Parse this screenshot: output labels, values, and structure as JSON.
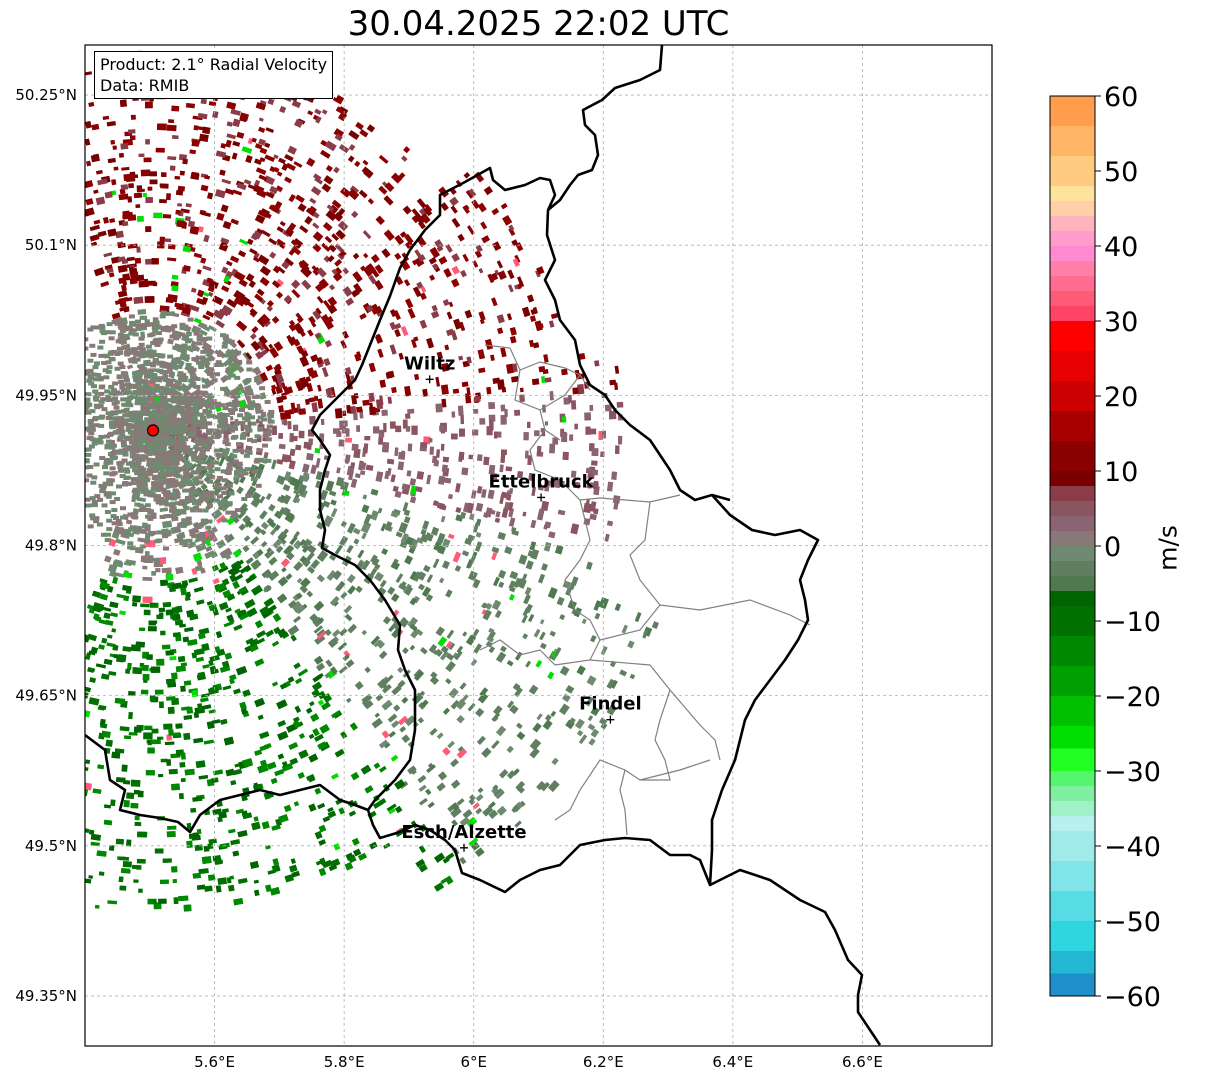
{
  "title": "30.04.2025 22:02 UTC",
  "info": {
    "product": "Product: 2.1° Radial Velocity",
    "data": "Data: RMIB"
  },
  "map": {
    "extent": {
      "lon_min": 5.4,
      "lon_max": 6.8,
      "lat_min": 49.3,
      "lat_max": 50.3
    },
    "lon_ticks": [
      {
        "value": 5.6,
        "label": "5.6°E"
      },
      {
        "value": 5.8,
        "label": "5.8°E"
      },
      {
        "value": 6.0,
        "label": "6°E"
      },
      {
        "value": 6.2,
        "label": "6.2°E"
      },
      {
        "value": 6.4,
        "label": "6.4°E"
      },
      {
        "value": 6.6,
        "label": "6.6°E"
      }
    ],
    "lat_ticks": [
      {
        "value": 49.35,
        "label": "49.35°N"
      },
      {
        "value": 49.5,
        "label": "49.5°N"
      },
      {
        "value": 49.65,
        "label": "49.65°N"
      },
      {
        "value": 49.8,
        "label": "49.8°N"
      },
      {
        "value": 49.95,
        "label": "49.95°N"
      },
      {
        "value": 50.1,
        "label": "50.1°N"
      },
      {
        "value": 50.25,
        "label": "50.25°N"
      }
    ],
    "radar_site": {
      "lon": 5.505,
      "lat": 49.915
    },
    "cities": [
      {
        "name": "Wiltz",
        "lon": 5.932,
        "lat": 49.966
      },
      {
        "name": "Ettelbruck",
        "lon": 6.104,
        "lat": 49.848
      },
      {
        "name": "Findel",
        "lon": 6.211,
        "lat": 49.626
      },
      {
        "name": "Esch/Alzette",
        "lon": 5.985,
        "lat": 49.498
      }
    ]
  },
  "colorbar": {
    "label": "m/s",
    "min": -60,
    "max": 60,
    "ticks": [
      {
        "value": 60,
        "label": "60"
      },
      {
        "value": 50,
        "label": "50"
      },
      {
        "value": 40,
        "label": "40"
      },
      {
        "value": 30,
        "label": "30"
      },
      {
        "value": 20,
        "label": "20"
      },
      {
        "value": 10,
        "label": "10"
      },
      {
        "value": 0,
        "label": "0"
      },
      {
        "value": -10,
        "label": "−10"
      },
      {
        "value": -20,
        "label": "−20"
      },
      {
        "value": -30,
        "label": "−30"
      },
      {
        "value": -40,
        "label": "−40"
      },
      {
        "value": -50,
        "label": "−50"
      },
      {
        "value": -60,
        "label": "−60"
      }
    ],
    "segments": [
      {
        "from": 56,
        "to": 60,
        "color": "#ff9d4c"
      },
      {
        "from": 52,
        "to": 56,
        "color": "#ffb466"
      },
      {
        "from": 48,
        "to": 52,
        "color": "#ffcb80"
      },
      {
        "from": 46,
        "to": 48,
        "color": "#ffe29c"
      },
      {
        "from": 44,
        "to": 46,
        "color": "#ffd0a8"
      },
      {
        "from": 42,
        "to": 44,
        "color": "#ffb3bc"
      },
      {
        "from": 40,
        "to": 42,
        "color": "#ff9ccc"
      },
      {
        "from": 38,
        "to": 40,
        "color": "#ff8ad0"
      },
      {
        "from": 36,
        "to": 38,
        "color": "#ff7fa8"
      },
      {
        "from": 34,
        "to": 36,
        "color": "#ff6c90"
      },
      {
        "from": 32,
        "to": 34,
        "color": "#ff5a78"
      },
      {
        "from": 30,
        "to": 32,
        "color": "#ff4466"
      },
      {
        "from": 26,
        "to": 30,
        "color": "#ff0000"
      },
      {
        "from": 22,
        "to": 26,
        "color": "#e60000"
      },
      {
        "from": 18,
        "to": 22,
        "color": "#cc0000"
      },
      {
        "from": 14,
        "to": 18,
        "color": "#a80000"
      },
      {
        "from": 10,
        "to": 14,
        "color": "#8b0000"
      },
      {
        "from": 8,
        "to": 10,
        "color": "#7a0000"
      },
      {
        "from": 6,
        "to": 8,
        "color": "#8a3c48"
      },
      {
        "from": 4,
        "to": 6,
        "color": "#8a5560"
      },
      {
        "from": 2,
        "to": 4,
        "color": "#8a6470"
      },
      {
        "from": 0,
        "to": 2,
        "color": "#8a7878"
      },
      {
        "from": -2,
        "to": 0,
        "color": "#6f8a70"
      },
      {
        "from": -4,
        "to": -2,
        "color": "#5f7f60"
      },
      {
        "from": -6,
        "to": -4,
        "color": "#4f7a50"
      },
      {
        "from": -8,
        "to": -6,
        "color": "#006400"
      },
      {
        "from": -12,
        "to": -8,
        "color": "#007000"
      },
      {
        "from": -16,
        "to": -12,
        "color": "#008800"
      },
      {
        "from": -20,
        "to": -16,
        "color": "#00a000"
      },
      {
        "from": -24,
        "to": -20,
        "color": "#00c000"
      },
      {
        "from": -27,
        "to": -24,
        "color": "#00e000"
      },
      {
        "from": -30,
        "to": -27,
        "color": "#22ff22"
      },
      {
        "from": -32,
        "to": -30,
        "color": "#55f570"
      },
      {
        "from": -34,
        "to": -32,
        "color": "#7ff0a0"
      },
      {
        "from": -36,
        "to": -34,
        "color": "#a0f0c8"
      },
      {
        "from": -38,
        "to": -36,
        "color": "#b8f0f0"
      },
      {
        "from": -42,
        "to": -38,
        "color": "#a0eaea"
      },
      {
        "from": -46,
        "to": -42,
        "color": "#80e4e8"
      },
      {
        "from": -50,
        "to": -46,
        "color": "#55dce4"
      },
      {
        "from": -54,
        "to": -50,
        "color": "#2fd6e0"
      },
      {
        "from": -57,
        "to": -54,
        "color": "#22b8d4"
      },
      {
        "from": -60,
        "to": -57,
        "color": "#1f8fcc"
      }
    ]
  },
  "colors": {
    "border": "#000000",
    "canton_border": "#808080",
    "radar_marker": "#ff0000",
    "grid": "#b0b0b0"
  }
}
